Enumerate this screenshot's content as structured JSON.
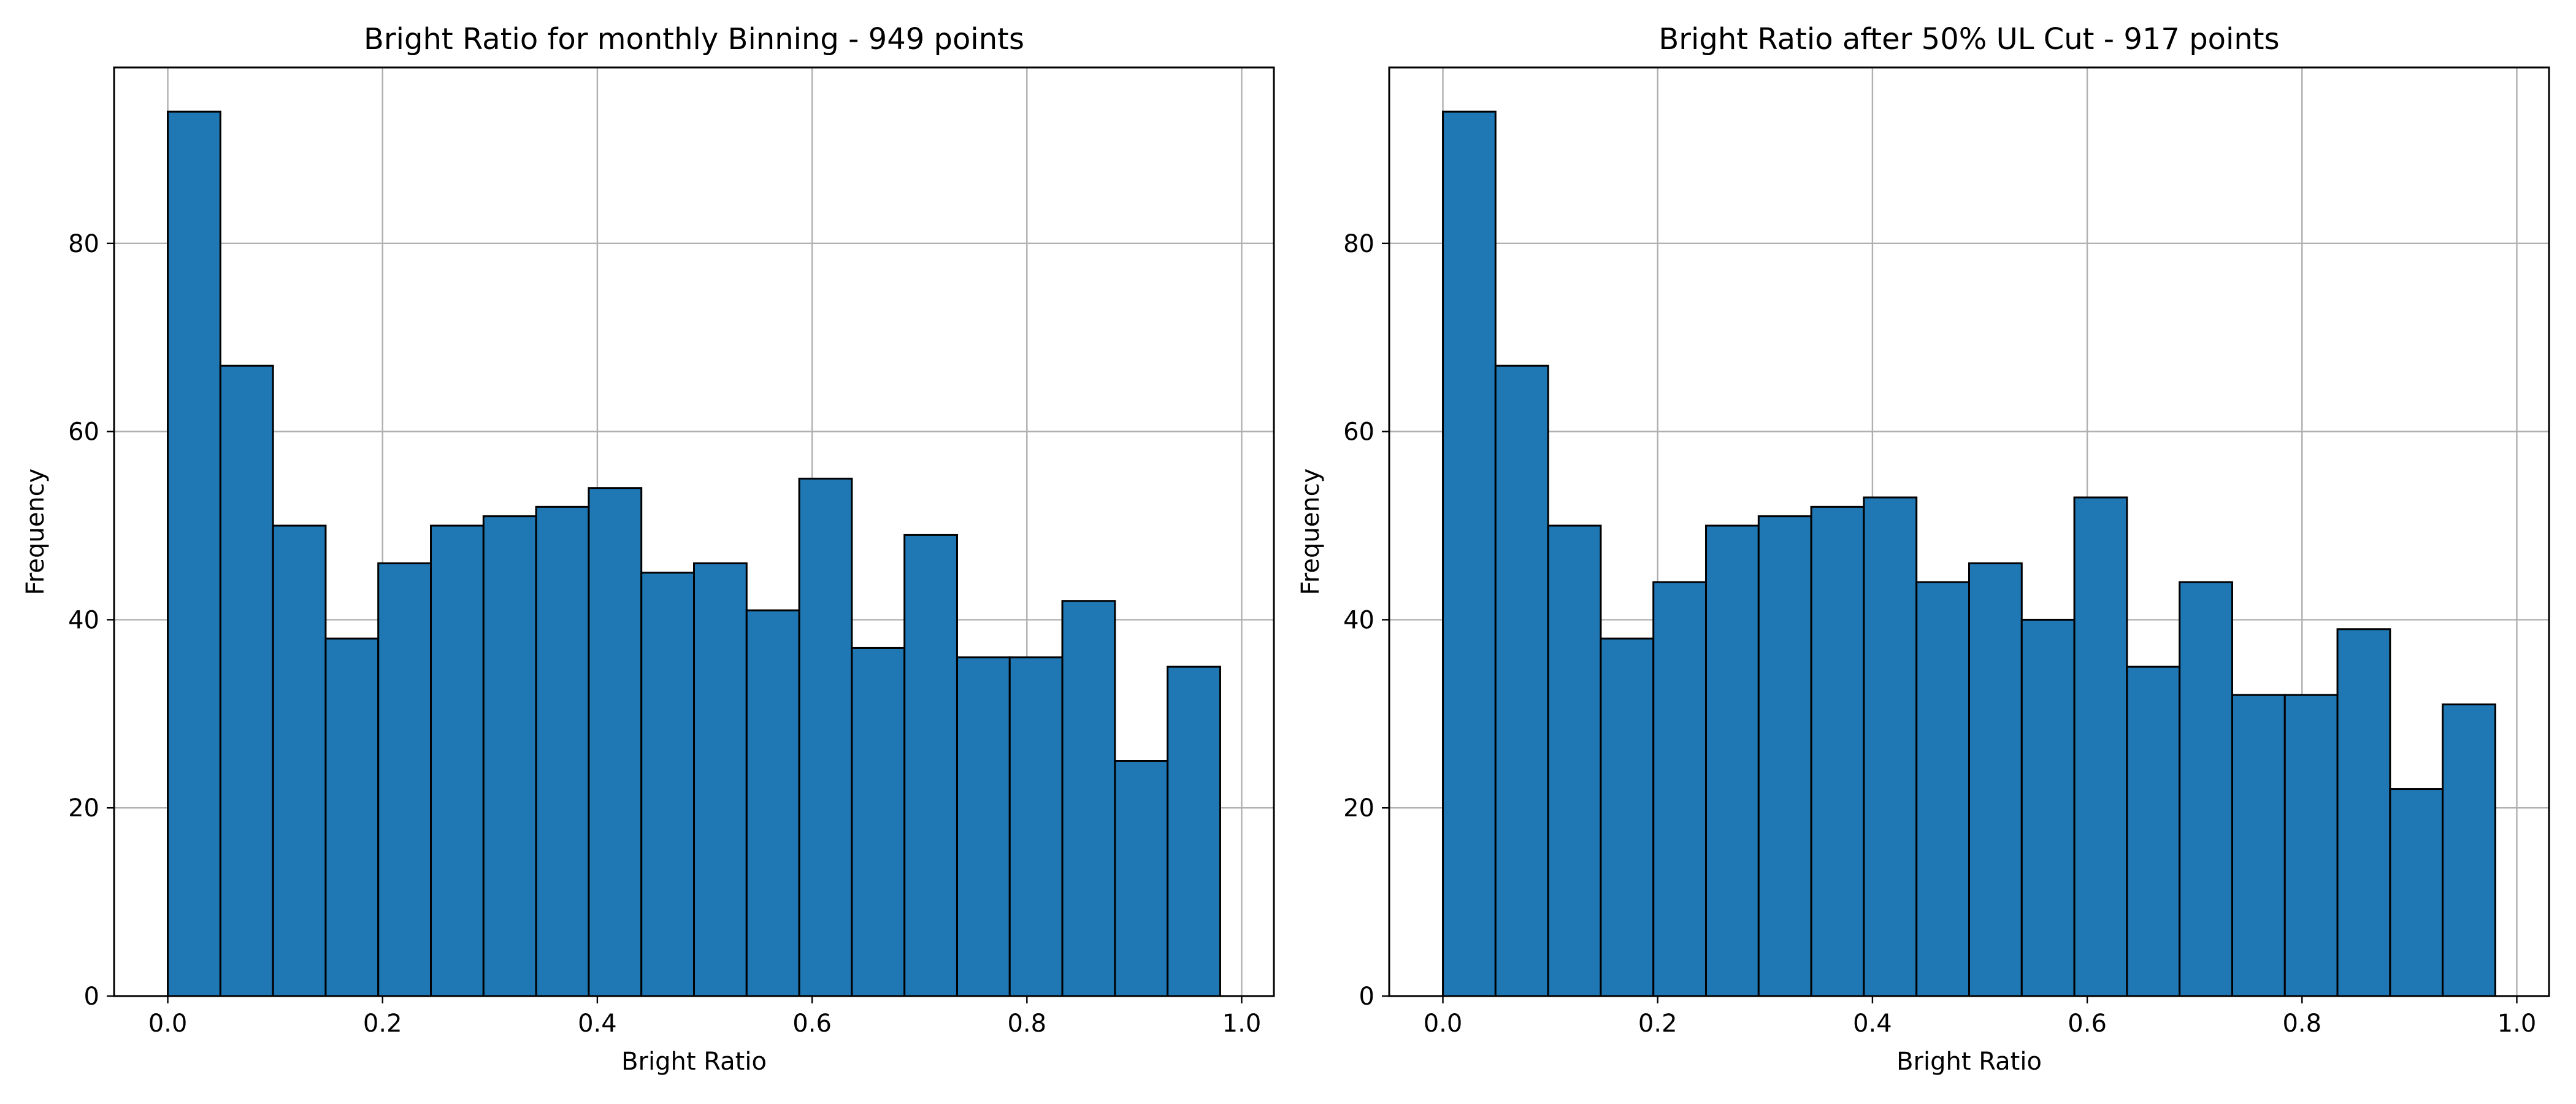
{
  "chart_data": [
    {
      "type": "bar",
      "title": "Bright Ratio for monthly Binning - 949 points",
      "xlabel": "Bright Ratio",
      "ylabel": "Frequency",
      "xlim": [
        -0.05,
        1.03
      ],
      "ylim": [
        0,
        98.7
      ],
      "xticks": [
        0.0,
        0.2,
        0.4,
        0.6,
        0.8,
        1.0
      ],
      "xtick_labels": [
        "0.0",
        "0.2",
        "0.4",
        "0.6",
        "0.8",
        "1.0"
      ],
      "yticks": [
        0,
        20,
        40,
        60,
        80
      ],
      "ytick_labels": [
        "0",
        "20",
        "40",
        "60",
        "80"
      ],
      "grid": true,
      "bar_color": "#1f77b4",
      "edge_color": "#000000",
      "bin_edges": [
        0.0,
        0.049,
        0.098,
        0.147,
        0.196,
        0.245,
        0.294,
        0.343,
        0.392,
        0.441,
        0.49,
        0.539,
        0.588,
        0.637,
        0.686,
        0.735,
        0.784,
        0.833,
        0.882,
        0.931,
        0.98
      ],
      "values": [
        94,
        67,
        50,
        38,
        46,
        50,
        51,
        52,
        54,
        45,
        46,
        41,
        55,
        37,
        49,
        36,
        36,
        42,
        25,
        35
      ]
    },
    {
      "type": "bar",
      "title": "Bright Ratio after 50% UL Cut - 917 points",
      "xlabel": "Bright Ratio",
      "ylabel": "Frequency",
      "xlim": [
        -0.05,
        1.03
      ],
      "ylim": [
        0,
        98.7
      ],
      "xticks": [
        0.0,
        0.2,
        0.4,
        0.6,
        0.8,
        1.0
      ],
      "xtick_labels": [
        "0.0",
        "0.2",
        "0.4",
        "0.6",
        "0.8",
        "1.0"
      ],
      "yticks": [
        0,
        20,
        40,
        60,
        80
      ],
      "ytick_labels": [
        "0",
        "20",
        "40",
        "60",
        "80"
      ],
      "grid": true,
      "bar_color": "#1f77b4",
      "edge_color": "#000000",
      "bin_edges": [
        0.0,
        0.049,
        0.098,
        0.147,
        0.196,
        0.245,
        0.294,
        0.343,
        0.392,
        0.441,
        0.49,
        0.539,
        0.588,
        0.637,
        0.686,
        0.735,
        0.784,
        0.833,
        0.882,
        0.931,
        0.98
      ],
      "values": [
        94,
        67,
        50,
        38,
        44,
        50,
        51,
        52,
        53,
        44,
        46,
        40,
        53,
        35,
        44,
        32,
        32,
        39,
        22,
        31
      ]
    }
  ]
}
